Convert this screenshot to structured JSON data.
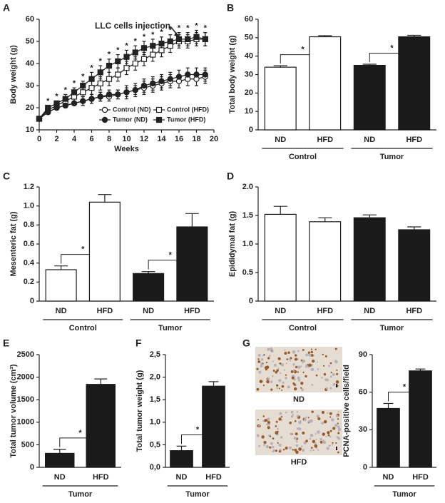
{
  "chart_data": [
    {
      "type": "line",
      "panel": "A",
      "xlabel": "Weeks",
      "ylabel": "Body weight (g)",
      "x": [
        0,
        1,
        2,
        3,
        4,
        5,
        6,
        7,
        8,
        9,
        10,
        11,
        12,
        13,
        14,
        15,
        16,
        17,
        18,
        19
      ],
      "xlim": [
        0,
        20
      ],
      "xticks": [
        0,
        2,
        4,
        6,
        8,
        10,
        12,
        14,
        16,
        18,
        20
      ],
      "ylim": [
        10,
        60
      ],
      "yticks": [
        10,
        20,
        30,
        40,
        50,
        60
      ],
      "series": [
        {
          "name": "Control (ND)",
          "marker": "circle",
          "filled": false,
          "color": "#222",
          "values": [
            15,
            18,
            20,
            21,
            22,
            23,
            24,
            25,
            25,
            26,
            27,
            28,
            29,
            30,
            31,
            32,
            32,
            33,
            33,
            34
          ],
          "errors": [
            1,
            1,
            1,
            1,
            1,
            2,
            2,
            2,
            2,
            2,
            3,
            3,
            3,
            3,
            3,
            3,
            3,
            3,
            3,
            3
          ]
        },
        {
          "name": "Control (HFD)",
          "marker": "square",
          "filled": false,
          "color": "#222",
          "values": [
            15,
            19,
            21,
            23,
            25,
            27,
            29,
            31,
            33,
            35,
            38,
            40,
            42,
            44,
            46,
            48,
            50,
            50,
            51,
            51
          ],
          "errors": [
            1,
            1,
            1,
            2,
            2,
            2,
            3,
            3,
            3,
            3,
            3,
            3,
            3,
            3,
            3,
            3,
            3,
            3,
            3,
            3
          ]
        },
        {
          "name": "Tumor (ND)",
          "marker": "circle",
          "filled": true,
          "color": "#222",
          "values": [
            15,
            18,
            20,
            21,
            22,
            23,
            24,
            25,
            26,
            26,
            27,
            28,
            30,
            31,
            32,
            33,
            34,
            35,
            35,
            35
          ],
          "errors": [
            1,
            1,
            1,
            1,
            1,
            2,
            2,
            2,
            2,
            2,
            2,
            2,
            3,
            3,
            3,
            3,
            3,
            3,
            3,
            3
          ]
        },
        {
          "name": "Tumor (HFD)",
          "marker": "square",
          "filled": true,
          "color": "#222",
          "values": [
            15,
            20,
            22,
            24,
            27,
            30,
            33,
            36,
            39,
            41,
            43,
            45,
            47,
            48,
            49,
            50,
            51,
            51,
            52,
            51
          ],
          "errors": [
            1,
            1,
            1,
            2,
            2,
            2,
            3,
            3,
            3,
            3,
            3,
            3,
            3,
            3,
            3,
            3,
            3,
            3,
            3,
            3
          ]
        }
      ],
      "significance": {
        "label": "*",
        "x": [
          1,
          2,
          3,
          4,
          5,
          6,
          7,
          8,
          9,
          10,
          11,
          12,
          13,
          14,
          15,
          16,
          17,
          18,
          19
        ]
      },
      "annotation": {
        "text": "LLC cells injection",
        "x": 16,
        "y": 52
      }
    },
    {
      "type": "bar",
      "panel": "B",
      "ylabel": "Total body weight (g)",
      "categories": [
        "ND",
        "HFD",
        "ND",
        "HFD"
      ],
      "groups": [
        "Control",
        "Tumor"
      ],
      "values": [
        34,
        50.5,
        35,
        50.5
      ],
      "errors": [
        0.8,
        0.6,
        0.6,
        0.8
      ],
      "colors": [
        "#ffffff",
        "#ffffff",
        "#1a1a1a",
        "#1a1a1a"
      ],
      "ylim": [
        0,
        60
      ],
      "yticks": [
        0,
        10,
        20,
        30,
        40,
        50,
        60
      ],
      "significance": [
        {
          "pair": [
            0,
            1
          ],
          "label": "*"
        },
        {
          "pair": [
            2,
            3
          ],
          "label": "*"
        }
      ]
    },
    {
      "type": "bar",
      "panel": "C",
      "ylabel": "Mesenteric fat (g)",
      "categories": [
        "ND",
        "HFD",
        "ND",
        "HFD"
      ],
      "groups": [
        "Control",
        "Tumor"
      ],
      "values": [
        0.33,
        1.04,
        0.29,
        0.78
      ],
      "errors": [
        0.04,
        0.08,
        0.02,
        0.14
      ],
      "colors": [
        "#ffffff",
        "#ffffff",
        "#1a1a1a",
        "#1a1a1a"
      ],
      "ylim": [
        0,
        1.2
      ],
      "yticks": [
        0,
        0.2,
        0.4,
        0.6,
        0.8,
        {
          "value": 1,
          "label": "1.0"
        },
        1.2
      ],
      "significance": [
        {
          "pair": [
            0,
            1
          ],
          "label": "*"
        },
        {
          "pair": [
            2,
            3
          ],
          "label": "*"
        }
      ]
    },
    {
      "type": "bar",
      "panel": "D",
      "ylabel": "Epididymal fat (g)",
      "categories": [
        "ND",
        "HFD",
        "ND",
        "HFD"
      ],
      "groups": [
        "Control",
        "Tumor"
      ],
      "values": [
        1.52,
        1.39,
        1.46,
        1.25
      ],
      "errors": [
        0.14,
        0.07,
        0.05,
        0.05
      ],
      "colors": [
        "#ffffff",
        "#ffffff",
        "#1a1a1a",
        "#1a1a1a"
      ],
      "ylim": [
        0,
        2
      ],
      "yticks": [
        0,
        0.5,
        {
          "value": 1,
          "label": "1.0"
        },
        1.5,
        {
          "value": 2,
          "label": "2.0"
        }
      ],
      "significance": []
    },
    {
      "type": "bar",
      "panel": "E",
      "ylabel": "Total tumor volume (cm³)",
      "categories": [
        "ND",
        "HFD"
      ],
      "groups": [
        "Tumor"
      ],
      "values": [
        310,
        1840
      ],
      "errors": [
        90,
        120
      ],
      "colors": [
        "#1a1a1a",
        "#1a1a1a"
      ],
      "ylim": [
        0,
        2500
      ],
      "yticks": [
        0,
        500,
        1000,
        1500,
        2000,
        2500
      ],
      "significance": [
        {
          "pair": [
            0,
            1
          ],
          "label": "*"
        }
      ]
    },
    {
      "type": "bar",
      "panel": "F",
      "ylabel": "Total tumor weight (g)",
      "categories": [
        "ND",
        "HFD"
      ],
      "groups": [
        "Tumor"
      ],
      "values": [
        0.37,
        1.8
      ],
      "errors": [
        0.1,
        0.1
      ],
      "colors": [
        "#1a1a1a",
        "#1a1a1a"
      ],
      "ylim": [
        0,
        2.5
      ],
      "yticks": [
        {
          "value": 0,
          "label": "0,0"
        },
        {
          "value": 0.5,
          "label": "0,5"
        },
        {
          "value": 1,
          "label": "1,0"
        },
        {
          "value": 1.5,
          "label": "1,5"
        },
        {
          "value": 2,
          "label": "2,0"
        },
        {
          "value": 2.5,
          "label": "2,5"
        }
      ],
      "significance": [
        {
          "pair": [
            0,
            1
          ],
          "label": "*"
        }
      ]
    },
    {
      "type": "bar",
      "panel": "G",
      "ylabel": "PCNA-positive cells/field",
      "image_labels": [
        "ND",
        "HFD"
      ],
      "categories": [
        "ND",
        "HFD"
      ],
      "groups": [
        "Tumor"
      ],
      "values": [
        47,
        77
      ],
      "errors": [
        4,
        1.5
      ],
      "colors": [
        "#1a1a1a",
        "#1a1a1a"
      ],
      "ylim": [
        0,
        90
      ],
      "yticks": [
        0,
        30,
        60,
        90
      ],
      "significance": [
        {
          "pair": [
            0,
            1
          ],
          "label": "*"
        }
      ]
    }
  ]
}
